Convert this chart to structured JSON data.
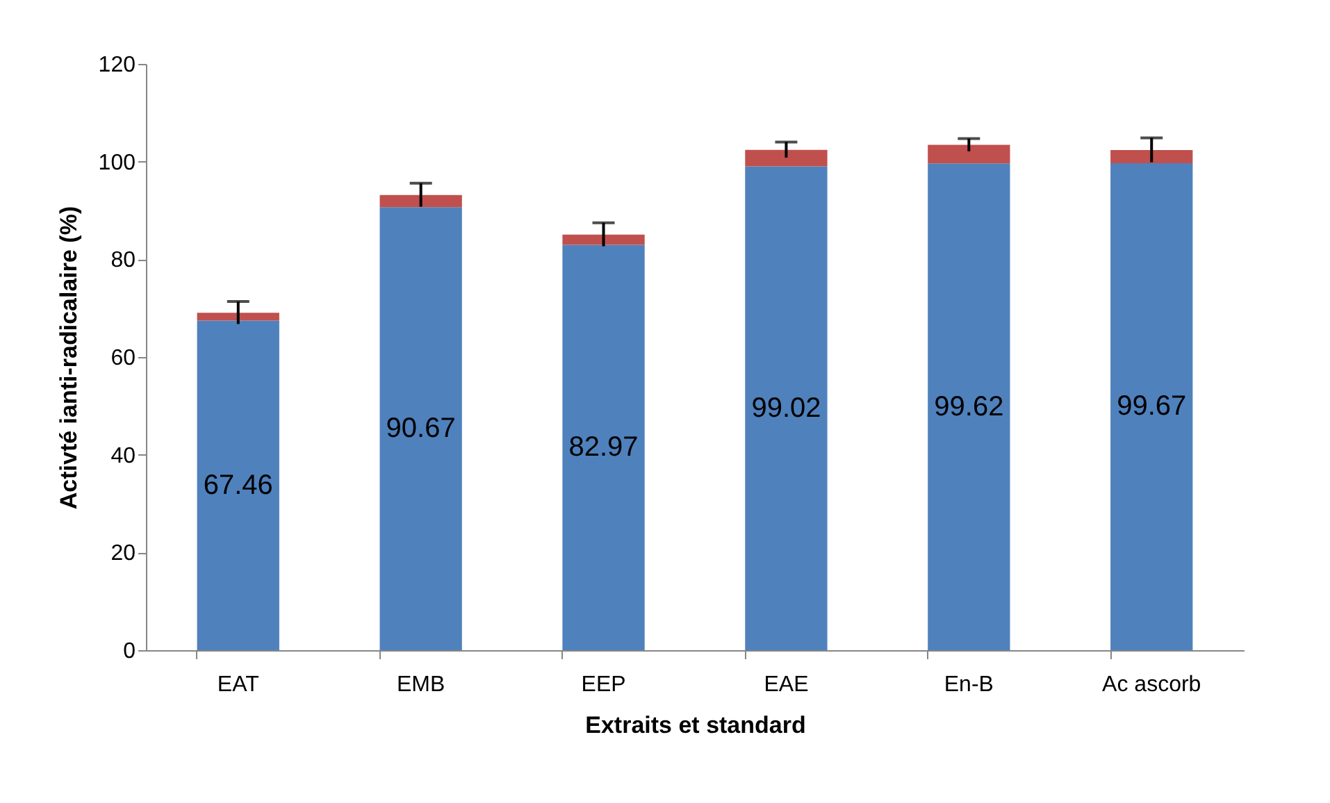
{
  "chart_data": {
    "type": "bar",
    "stacked": true,
    "xlabel": "Extraits et standard",
    "ylabel": "Activté ianti-radicalaire (%)",
    "categories": [
      "EAT",
      "EMB",
      "EEP",
      "EAE",
      "En-B",
      "Ac ascorb"
    ],
    "series": [
      {
        "color": "#4f81bd",
        "values": [
          67.46,
          90.67,
          82.97,
          99.02,
          99.62,
          99.67
        ],
        "value_labels": [
          "67.46",
          "90.67",
          "82.97",
          "99.02",
          "99.62",
          "99.67"
        ]
      },
      {
        "color": "#c0504d",
        "values": [
          1.6,
          2.5,
          2.1,
          3.4,
          3.8,
          2.7
        ],
        "errors": [
          2.3,
          2.4,
          2.4,
          1.6,
          1.3,
          2.5
        ]
      }
    ],
    "ylim": [
      0,
      120
    ],
    "yticks": [
      0,
      20,
      40,
      60,
      80,
      100,
      120
    ],
    "grid": false
  }
}
